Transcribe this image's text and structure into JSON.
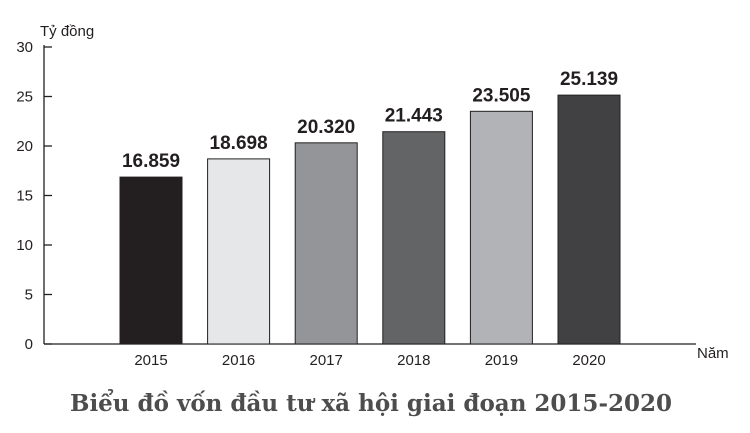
{
  "chart_data": {
    "type": "bar",
    "title": "Biểu đồ vốn đầu tư xã hội giai đoạn 2015-2020",
    "xlabel": "Năm",
    "ylabel": "Tỷ đồng",
    "ylim": [
      0,
      30
    ],
    "yticks": [
      "0",
      "5",
      "10",
      "15",
      "20",
      "25",
      "30"
    ],
    "categories": [
      "2015",
      "2016",
      "2017",
      "2018",
      "2019",
      "2020"
    ],
    "values": [
      16.859,
      18.698,
      20.32,
      21.443,
      23.505,
      25.139
    ],
    "value_labels": [
      "16.859",
      "18.698",
      "20.320",
      "21.443",
      "23.505",
      "25.139"
    ],
    "bar_colors": [
      "#231f20",
      "#e6e7e8",
      "#939598",
      "#636466",
      "#b1b3b6",
      "#414042"
    ],
    "grid": false,
    "legend": "none"
  }
}
